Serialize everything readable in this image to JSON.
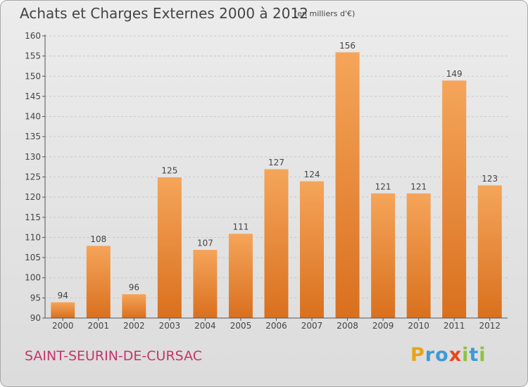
{
  "header": {
    "title": "Achats et Charges Externes 2000 à 2012",
    "subtitle": "(en milliers d'€)"
  },
  "footer": {
    "commune": "SAINT-SEURIN-DE-CURSAC",
    "logo_letters": [
      "P",
      "r",
      "o",
      "x",
      "i",
      "t",
      "i"
    ],
    "logo_colors": [
      "#e8a317",
      "#3c9ad6",
      "#3c9ad6",
      "#e7471b",
      "#8fc23f",
      "#3c9ad6",
      "#8fc23f"
    ]
  },
  "colors": {
    "bar_light": "#f5a55a",
    "bar_dark": "#d9701e",
    "axis": "#555555",
    "text": "#444444"
  },
  "chart_data": {
    "type": "bar",
    "categories": [
      "2000",
      "2001",
      "2002",
      "2003",
      "2004",
      "2005",
      "2006",
      "2007",
      "2008",
      "2009",
      "2010",
      "2011",
      "2012"
    ],
    "values": [
      94,
      108,
      96,
      125,
      107,
      111,
      127,
      124,
      156,
      121,
      121,
      149,
      123
    ],
    "ylim": [
      90,
      160
    ],
    "yticks": [
      90,
      95,
      100,
      105,
      110,
      115,
      120,
      125,
      130,
      135,
      140,
      145,
      150,
      155,
      160
    ],
    "grid": true,
    "title": "Achats et Charges Externes 2000 à 2012",
    "xlabel": "",
    "ylabel": ""
  }
}
